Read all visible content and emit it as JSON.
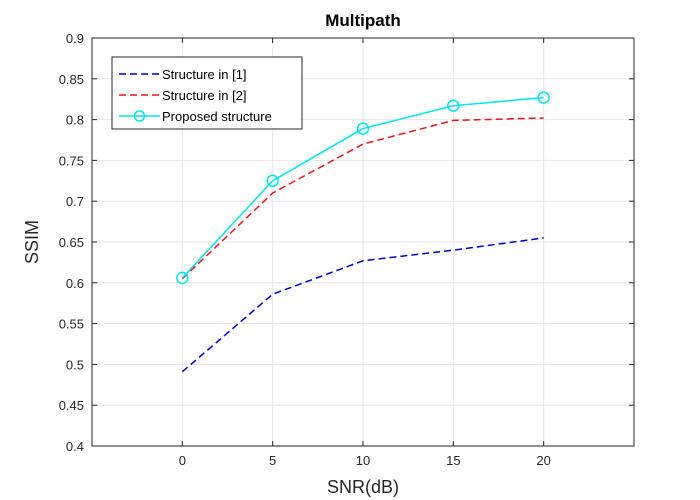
{
  "chart_data": {
    "type": "line",
    "title": "Multipath",
    "xlabel": "SNR(dB)",
    "ylabel": "SSIM",
    "x": [
      0,
      5,
      10,
      15,
      20
    ],
    "xlim": [
      -5,
      25
    ],
    "ylim": [
      0.4,
      0.9
    ],
    "xticks": [
      0,
      5,
      10,
      15,
      20
    ],
    "xtick_labels": [
      "0",
      "5",
      "10",
      "15",
      "20"
    ],
    "yticks": [
      0.4,
      0.45,
      0.5,
      0.55,
      0.6,
      0.65,
      0.7,
      0.75,
      0.8,
      0.85,
      0.9
    ],
    "ytick_labels": [
      "0.4",
      "0.45",
      "0.5",
      "0.55",
      "0.6",
      "0.65",
      "0.7",
      "0.75",
      "0.8",
      "0.85",
      "0.9"
    ],
    "grid": true,
    "legend_position": "top-left",
    "series": [
      {
        "name": "Structure in [1]",
        "values": [
          0.491,
          0.586,
          0.627,
          0.64,
          0.655
        ],
        "color": "#0000cc",
        "line_style": "dashed",
        "marker": "none"
      },
      {
        "name": "Structure in [2]",
        "values": [
          0.605,
          0.71,
          0.77,
          0.799,
          0.802
        ],
        "color": "#e8161c",
        "line_style": "dashed",
        "marker": "none"
      },
      {
        "name": "Proposed structure",
        "values": [
          0.606,
          0.725,
          0.789,
          0.817,
          0.827
        ],
        "color": "#00e5ee",
        "line_style": "solid",
        "marker": "circle"
      }
    ]
  }
}
